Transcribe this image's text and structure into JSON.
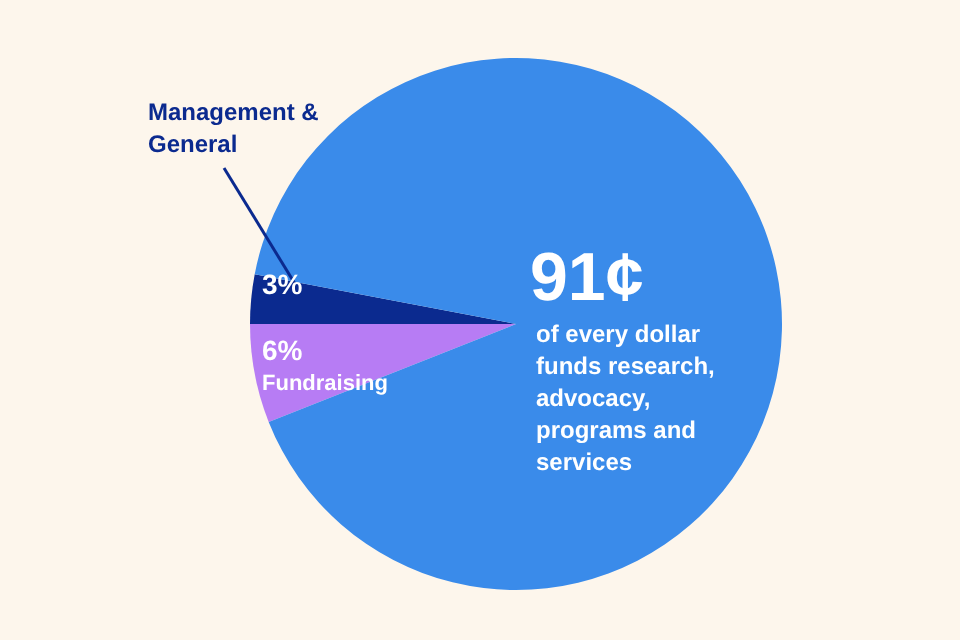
{
  "chart_data": {
    "type": "pie",
    "categories": [
      "Management & General",
      "Fundraising",
      "of every dollar funds research, advocacy, programs and services"
    ],
    "values": [
      3,
      6,
      91
    ],
    "value_labels": [
      "3%",
      "6%",
      "91¢"
    ],
    "colors": [
      "#0b2a8f",
      "#b77cf4",
      "#3a8bea"
    ],
    "legend": false
  }
}
